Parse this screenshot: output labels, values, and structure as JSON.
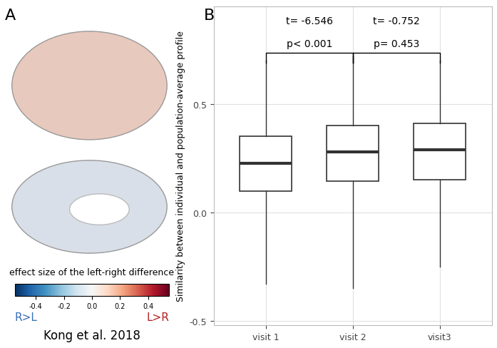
{
  "panel_labels": [
    "A",
    "B"
  ],
  "brain_map": {
    "colorbar_label": "effect size of the left-right difference",
    "colorbar": {
      "range": [
        -0.55,
        0.55
      ],
      "ticks": [
        -0.4,
        -0.2,
        0.0,
        0.2,
        0.4
      ]
    },
    "left_label": "R>L",
    "right_label": "L>R",
    "source": "Kong et al. 2018"
  },
  "chart_data": {
    "type": "box",
    "categories": [
      "visit 1",
      "visit 2",
      "visit3"
    ],
    "y_label": "Similarity between individual and population-average profile",
    "q1": [
      0.1,
      0.145,
      0.15
    ],
    "median": [
      0.225,
      0.28,
      0.29
    ],
    "q3": [
      0.35,
      0.4,
      0.41
    ],
    "min": [
      -0.33,
      -0.35,
      -0.25
    ],
    "max": [
      0.7,
      0.72,
      0.7
    ],
    "ylim": [
      -0.52,
      0.95
    ],
    "yticks": [
      -0.5,
      0.0,
      0.5
    ],
    "grid": true,
    "comparisons": [
      {
        "from": "visit 1",
        "to": "visit 2",
        "t_label": "t= -6.546",
        "p_label": "p< 0.001"
      },
      {
        "from": "visit 2",
        "to": "visit3",
        "t_label": "t= -0.752",
        "p_label": "p= 0.453"
      }
    ]
  }
}
